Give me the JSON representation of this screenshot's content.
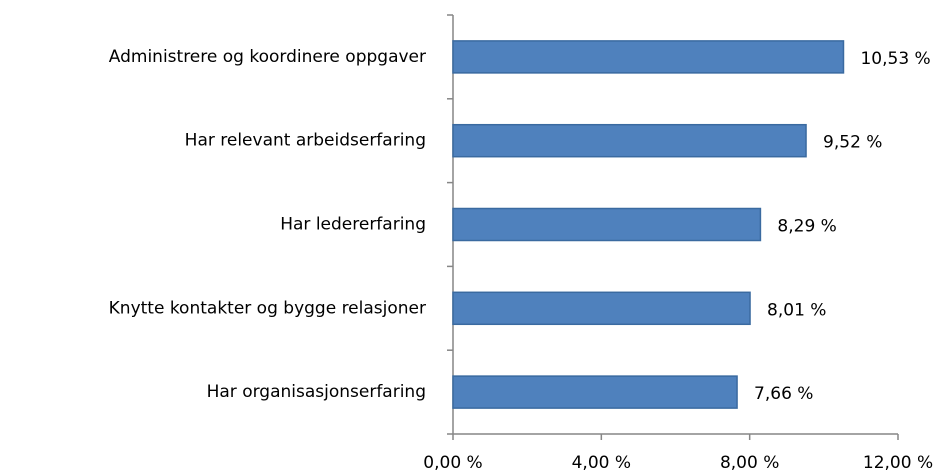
{
  "chart_data": {
    "type": "hbar",
    "categories": [
      "Administrere og koordinere oppgaver",
      "Har relevant arbeidserfaring",
      "Har ledererfaring",
      "Knytte kontakter og bygge relasjoner",
      "Har organisasjonserfaring"
    ],
    "values": [
      10.53,
      9.52,
      8.29,
      8.01,
      7.66
    ],
    "value_labels": [
      "10,53 %",
      "9,52 %",
      "8,29 %",
      "8,01 %",
      "7,66 %"
    ],
    "color": "#4f81bd",
    "xlim": [
      0,
      12
    ],
    "xticks": [
      {
        "value": 0,
        "label": "0,00 %"
      },
      {
        "value": 4,
        "label": "4,00 %"
      },
      {
        "value": 8,
        "label": "8,00 %"
      },
      {
        "value": 12,
        "label": "12,00 %"
      }
    ],
    "grid": false
  }
}
